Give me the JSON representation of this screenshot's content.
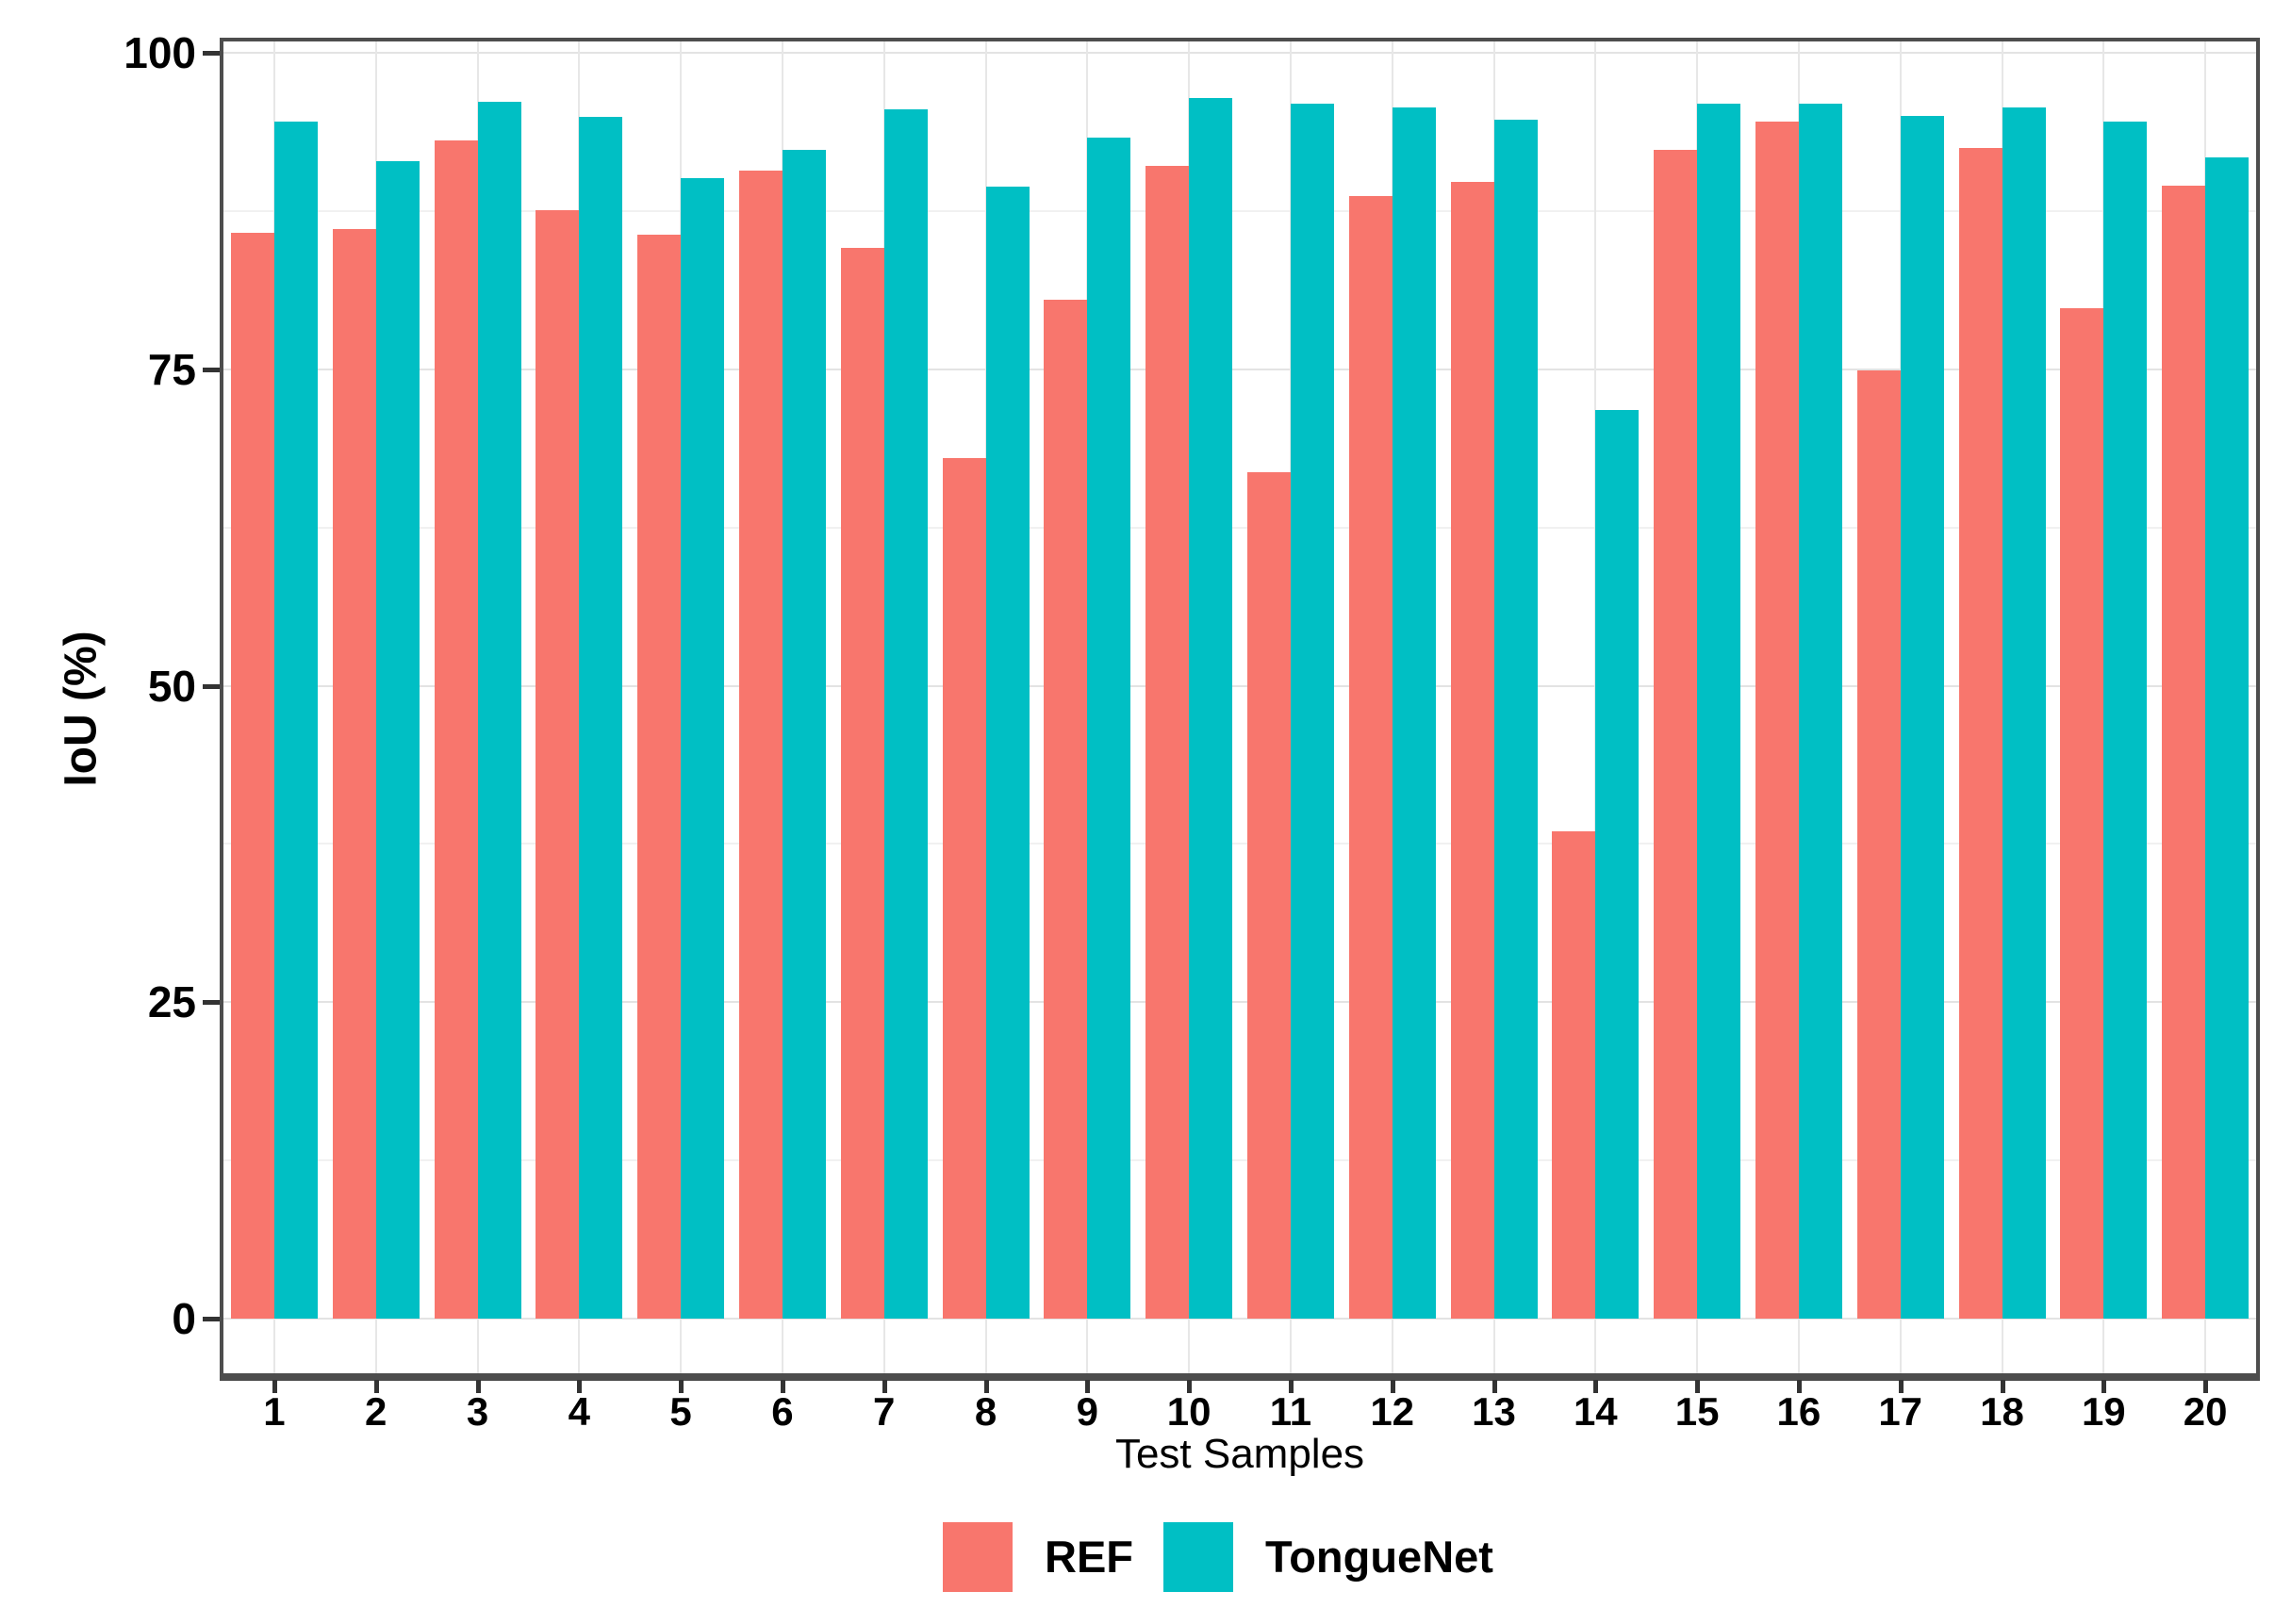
{
  "chart_data": {
    "type": "bar",
    "title": "",
    "xlabel": "Test Samples",
    "ylabel": "IoU (%)",
    "categories": [
      "1",
      "2",
      "3",
      "4",
      "5",
      "6",
      "7",
      "8",
      "9",
      "10",
      "11",
      "12",
      "13",
      "14",
      "15",
      "16",
      "17",
      "18",
      "19",
      "20"
    ],
    "series": [
      {
        "name": "REF",
        "color": "#F8766D",
        "values": [
          85.8,
          86.1,
          93.1,
          87.6,
          85.6,
          90.7,
          84.6,
          68.0,
          80.5,
          91.1,
          66.9,
          88.7,
          89.8,
          38.5,
          92.3,
          94.6,
          74.9,
          92.5,
          79.8,
          89.5
        ]
      },
      {
        "name": "TongueNet",
        "color": "#00BFC4",
        "values": [
          94.6,
          91.4,
          96.1,
          94.9,
          90.1,
          92.3,
          95.5,
          89.4,
          93.3,
          96.4,
          96.0,
          95.7,
          94.7,
          71.8,
          96.0,
          96.0,
          95.0,
          95.7,
          94.6,
          91.7
        ]
      }
    ],
    "ylim": [
      0,
      100
    ],
    "y_major_ticks": [
      0,
      25,
      50,
      75,
      100
    ],
    "y_minor_gridlines": [
      12.5,
      37.5,
      62.5,
      87.5
    ],
    "grid": {
      "horizontal_major": true,
      "horizontal_minor": true,
      "vertical_major_at_category_centers": true
    },
    "legend_position": "bottom-center",
    "bar_style": "dodged pair, no gap within pair"
  },
  "axes": {
    "y_title": "IoU (%)",
    "x_title": "Test Samples",
    "y_tick_labels": [
      "100",
      "75",
      "50",
      "25",
      "0"
    ],
    "x_tick_labels": [
      "1",
      "2",
      "3",
      "4",
      "5",
      "6",
      "7",
      "8",
      "9",
      "10",
      "11",
      "12",
      "13",
      "14",
      "15",
      "16",
      "17",
      "18",
      "19",
      "20"
    ]
  },
  "legend": {
    "items": [
      {
        "label": "REF",
        "color": "#F8766D"
      },
      {
        "label": "TongueNet",
        "color": "#00BFC4"
      }
    ]
  },
  "colors": {
    "ref_bar": "#F8766D",
    "tonguenet_bar": "#00BFC4",
    "panel_border": "#4d4d4d",
    "axis_line": "#4d4d4d",
    "tick_mark": "#333333",
    "grid_major": "#e3e3e3",
    "grid_minor": "#f1f1f1",
    "text": "#000000",
    "background": "#ffffff"
  }
}
